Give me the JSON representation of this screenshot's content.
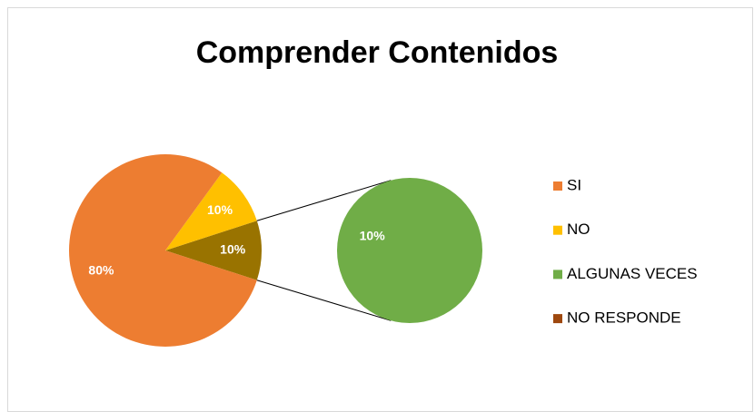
{
  "chart_data": {
    "type": "pie_of_pie",
    "title": "Comprender Contenidos",
    "categories": [
      "SI",
      "NO",
      "ALGUNAS VECES",
      "NO RESPONDE"
    ],
    "values": [
      80,
      10,
      10,
      0
    ],
    "value_labels": [
      "80%",
      "10%",
      "10%",
      null
    ],
    "colors": [
      "#ed7d31",
      "#ffc000",
      "#70ad47",
      "#9e480e"
    ],
    "secondary_count": 2,
    "other_value": 10,
    "other_value_label": "10%",
    "other_color": "#997300",
    "legend": "right"
  }
}
